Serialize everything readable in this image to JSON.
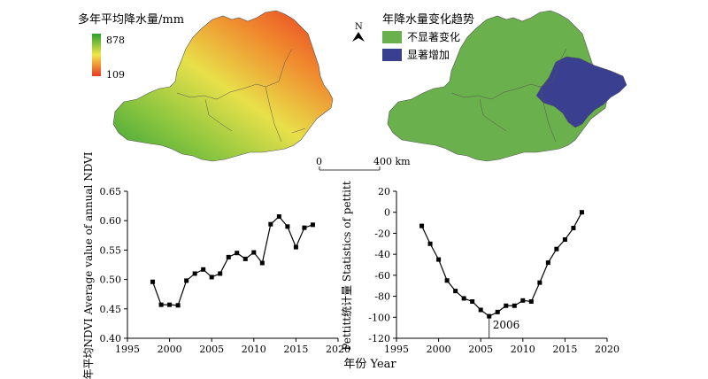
{
  "maps": {
    "precip": {
      "title": "多年平均降水量/mm",
      "legend_max": "878",
      "legend_min": "109",
      "colors": {
        "high": "#2aa12a",
        "mid": "#f2e64a",
        "low": "#e83a22"
      }
    },
    "trend": {
      "title": "年降水量变化趋势",
      "legend": [
        {
          "label": "不显著变化",
          "color": "#6ab04c"
        },
        {
          "label": "显著增加",
          "color": "#3a3f8f"
        }
      ]
    },
    "north_label": "N",
    "scale_left": "0",
    "scale_right": "400 km"
  },
  "shared_xlabel": "年份 Year",
  "chart_data": [
    {
      "type": "line",
      "ylabel": "年平均NDVI Average value of annual NDVI",
      "xlim": [
        1995,
        2020
      ],
      "ylim": [
        0.4,
        0.65
      ],
      "xticks": [
        "1995",
        "2000",
        "2005",
        "2010",
        "2015",
        "2020"
      ],
      "yticks": [
        "0.40",
        "0.45",
        "0.50",
        "0.55",
        "0.60",
        "0.65"
      ],
      "x": [
        1998,
        1999,
        2000,
        2001,
        2002,
        2003,
        2004,
        2005,
        2006,
        2007,
        2008,
        2009,
        2010,
        2011,
        2012,
        2013,
        2014,
        2015,
        2016,
        2017
      ],
      "values": [
        0.496,
        0.457,
        0.457,
        0.456,
        0.498,
        0.51,
        0.517,
        0.504,
        0.51,
        0.538,
        0.545,
        0.535,
        0.546,
        0.528,
        0.594,
        0.607,
        0.59,
        0.555,
        0.588,
        0.593
      ],
      "marker": "square"
    },
    {
      "type": "line",
      "ylabel": "Pettitt统计量 Statistics of pettitt",
      "xlim": [
        1995,
        2020
      ],
      "ylim": [
        -120,
        20
      ],
      "xticks": [
        "1995",
        "2000",
        "2005",
        "2010",
        "2015",
        "2020"
      ],
      "yticks": [
        "-120",
        "-100",
        "-80",
        "-60",
        "-40",
        "-20",
        "0",
        "20"
      ],
      "x": [
        1998,
        1999,
        2000,
        2001,
        2002,
        2003,
        2004,
        2005,
        2006,
        2007,
        2008,
        2009,
        2010,
        2011,
        2012,
        2013,
        2014,
        2015,
        2016,
        2017
      ],
      "values": [
        -13,
        -30,
        -45,
        -65,
        -75,
        -82,
        -85,
        -93,
        -99,
        -95,
        -89,
        -89,
        -84,
        -85,
        -67,
        -48,
        -35,
        -26,
        -15,
        0
      ],
      "marker": "square",
      "annotation": {
        "x": 2006,
        "label": "2006"
      }
    }
  ]
}
